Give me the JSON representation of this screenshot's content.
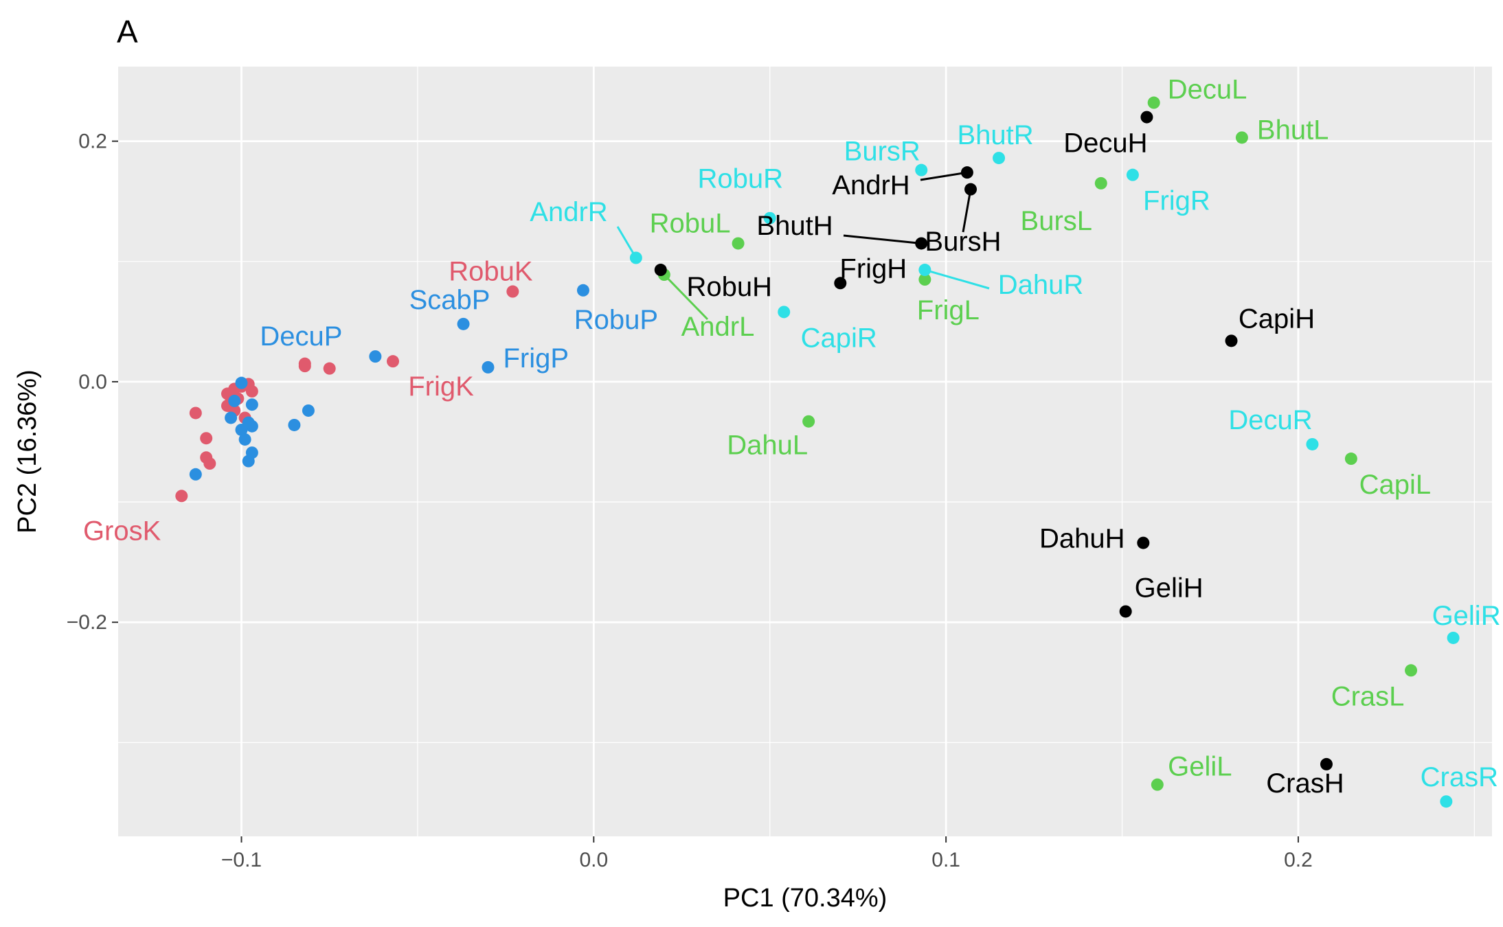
{
  "panel_label": "A",
  "chart_data": {
    "type": "scatter",
    "title": "",
    "xlabel": "PC1 (70.34%)",
    "ylabel": "PC2 (16.36%)",
    "xlim": [
      -0.135,
      0.255
    ],
    "ylim": [
      -0.378,
      0.262
    ],
    "x_ticks": [
      -0.1,
      0.0,
      0.1,
      0.2
    ],
    "x_tick_labels": [
      "−0.1",
      "0.0",
      "0.1",
      "0.2"
    ],
    "y_ticks": [
      -0.2,
      0.0,
      0.2
    ],
    "y_tick_labels": [
      "−0.2",
      "0.0",
      "0.2"
    ],
    "grid": true,
    "background": "#ebebeb",
    "legend": "none",
    "colors": {
      "K": "#e05a6d",
      "P": "#2b8fe0",
      "L": "#5ccf4f",
      "R": "#2ee0e6",
      "H": "#000000"
    },
    "points": [
      {
        "x": -0.117,
        "y": -0.095,
        "g": "K",
        "label": "GrosK"
      },
      {
        "x": -0.023,
        "y": 0.075,
        "g": "K",
        "label": "RobuK"
      },
      {
        "x": -0.057,
        "y": 0.017,
        "g": "K",
        "label": "FrigK"
      },
      {
        "x": -0.075,
        "y": 0.011,
        "g": "K"
      },
      {
        "x": -0.082,
        "y": 0.015,
        "g": "K"
      },
      {
        "x": -0.082,
        "y": 0.013,
        "g": "K"
      },
      {
        "x": -0.113,
        "y": -0.026,
        "g": "K"
      },
      {
        "x": -0.11,
        "y": -0.047,
        "g": "K"
      },
      {
        "x": -0.11,
        "y": -0.063,
        "g": "K"
      },
      {
        "x": -0.109,
        "y": -0.068,
        "g": "K"
      },
      {
        "x": -0.104,
        "y": -0.01,
        "g": "K"
      },
      {
        "x": -0.103,
        "y": -0.017,
        "g": "K"
      },
      {
        "x": -0.104,
        "y": -0.02,
        "g": "K"
      },
      {
        "x": -0.102,
        "y": -0.006,
        "g": "K"
      },
      {
        "x": -0.101,
        "y": -0.014,
        "g": "K"
      },
      {
        "x": -0.1,
        "y": -0.004,
        "g": "K"
      },
      {
        "x": -0.099,
        "y": -0.03,
        "g": "K"
      },
      {
        "x": -0.098,
        "y": -0.002,
        "g": "K"
      },
      {
        "x": -0.097,
        "y": -0.008,
        "g": "K"
      },
      {
        "x": -0.102,
        "y": -0.024,
        "g": "K"
      },
      {
        "x": -0.03,
        "y": 0.012,
        "g": "P",
        "label": "FrigP"
      },
      {
        "x": -0.037,
        "y": 0.048,
        "g": "P",
        "label": "ScabP"
      },
      {
        "x": -0.062,
        "y": 0.021,
        "g": "P",
        "label": "DecuP"
      },
      {
        "x": -0.003,
        "y": 0.076,
        "g": "P",
        "label": "RobuP"
      },
      {
        "x": -0.081,
        "y": -0.024,
        "g": "P"
      },
      {
        "x": -0.085,
        "y": -0.036,
        "g": "P"
      },
      {
        "x": -0.113,
        "y": -0.077,
        "g": "P"
      },
      {
        "x": -0.103,
        "y": -0.03,
        "g": "P"
      },
      {
        "x": -0.102,
        "y": -0.016,
        "g": "P"
      },
      {
        "x": -0.1,
        "y": -0.001,
        "g": "P"
      },
      {
        "x": -0.1,
        "y": -0.04,
        "g": "P"
      },
      {
        "x": -0.099,
        "y": -0.048,
        "g": "P"
      },
      {
        "x": -0.098,
        "y": -0.066,
        "g": "P"
      },
      {
        "x": -0.097,
        "y": -0.059,
        "g": "P"
      },
      {
        "x": -0.097,
        "y": -0.037,
        "g": "P"
      },
      {
        "x": -0.098,
        "y": -0.034,
        "g": "P"
      },
      {
        "x": -0.097,
        "y": -0.019,
        "g": "P"
      },
      {
        "x": 0.159,
        "y": 0.232,
        "g": "L",
        "label": "DecuL"
      },
      {
        "x": 0.184,
        "y": 0.203,
        "g": "L",
        "label": "BhutL"
      },
      {
        "x": 0.144,
        "y": 0.165,
        "g": "L",
        "label": "BursL"
      },
      {
        "x": 0.041,
        "y": 0.115,
        "g": "L",
        "label": "RobuL"
      },
      {
        "x": 0.02,
        "y": 0.089,
        "g": "L",
        "label": "AndrL"
      },
      {
        "x": 0.094,
        "y": 0.085,
        "g": "L",
        "label": "FrigL"
      },
      {
        "x": 0.061,
        "y": -0.033,
        "g": "L",
        "label": "DahuL"
      },
      {
        "x": 0.215,
        "y": -0.064,
        "g": "L",
        "label": "CapiL"
      },
      {
        "x": 0.232,
        "y": -0.24,
        "g": "L",
        "label": "CrasL"
      },
      {
        "x": 0.16,
        "y": -0.335,
        "g": "L",
        "label": "GeliL"
      },
      {
        "x": 0.093,
        "y": 0.176,
        "g": "R",
        "label": "BursR"
      },
      {
        "x": 0.115,
        "y": 0.186,
        "g": "R",
        "label": "BhutR"
      },
      {
        "x": 0.05,
        "y": 0.136,
        "g": "R",
        "label": "RobuR"
      },
      {
        "x": 0.012,
        "y": 0.103,
        "g": "R",
        "label": "AndrR"
      },
      {
        "x": 0.153,
        "y": 0.172,
        "g": "R",
        "label": "FrigR"
      },
      {
        "x": 0.094,
        "y": 0.093,
        "g": "R",
        "label": "DahuR"
      },
      {
        "x": 0.054,
        "y": 0.058,
        "g": "R",
        "label": "CapiR"
      },
      {
        "x": 0.204,
        "y": -0.052,
        "g": "R",
        "label": "DecuR"
      },
      {
        "x": 0.244,
        "y": -0.213,
        "g": "R",
        "label": "GeliR"
      },
      {
        "x": 0.242,
        "y": -0.349,
        "g": "R",
        "label": "CrasR"
      },
      {
        "x": 0.157,
        "y": 0.22,
        "g": "H",
        "label": "DecuH"
      },
      {
        "x": 0.106,
        "y": 0.174,
        "g": "H",
        "label": "AndrH"
      },
      {
        "x": 0.107,
        "y": 0.16,
        "g": "H",
        "label": "BursH"
      },
      {
        "x": 0.093,
        "y": 0.115,
        "g": "H",
        "label": "BhutH"
      },
      {
        "x": 0.019,
        "y": 0.093,
        "g": "H",
        "label": "RobuH"
      },
      {
        "x": 0.07,
        "y": 0.082,
        "g": "H",
        "label": "FrigH"
      },
      {
        "x": 0.181,
        "y": 0.034,
        "g": "H",
        "label": "CapiH"
      },
      {
        "x": 0.156,
        "y": -0.134,
        "g": "H",
        "label": "DahuH"
      },
      {
        "x": 0.151,
        "y": -0.191,
        "g": "H",
        "label": "GeliH"
      },
      {
        "x": 0.208,
        "y": -0.318,
        "g": "H",
        "label": "CrasH"
      }
    ]
  }
}
